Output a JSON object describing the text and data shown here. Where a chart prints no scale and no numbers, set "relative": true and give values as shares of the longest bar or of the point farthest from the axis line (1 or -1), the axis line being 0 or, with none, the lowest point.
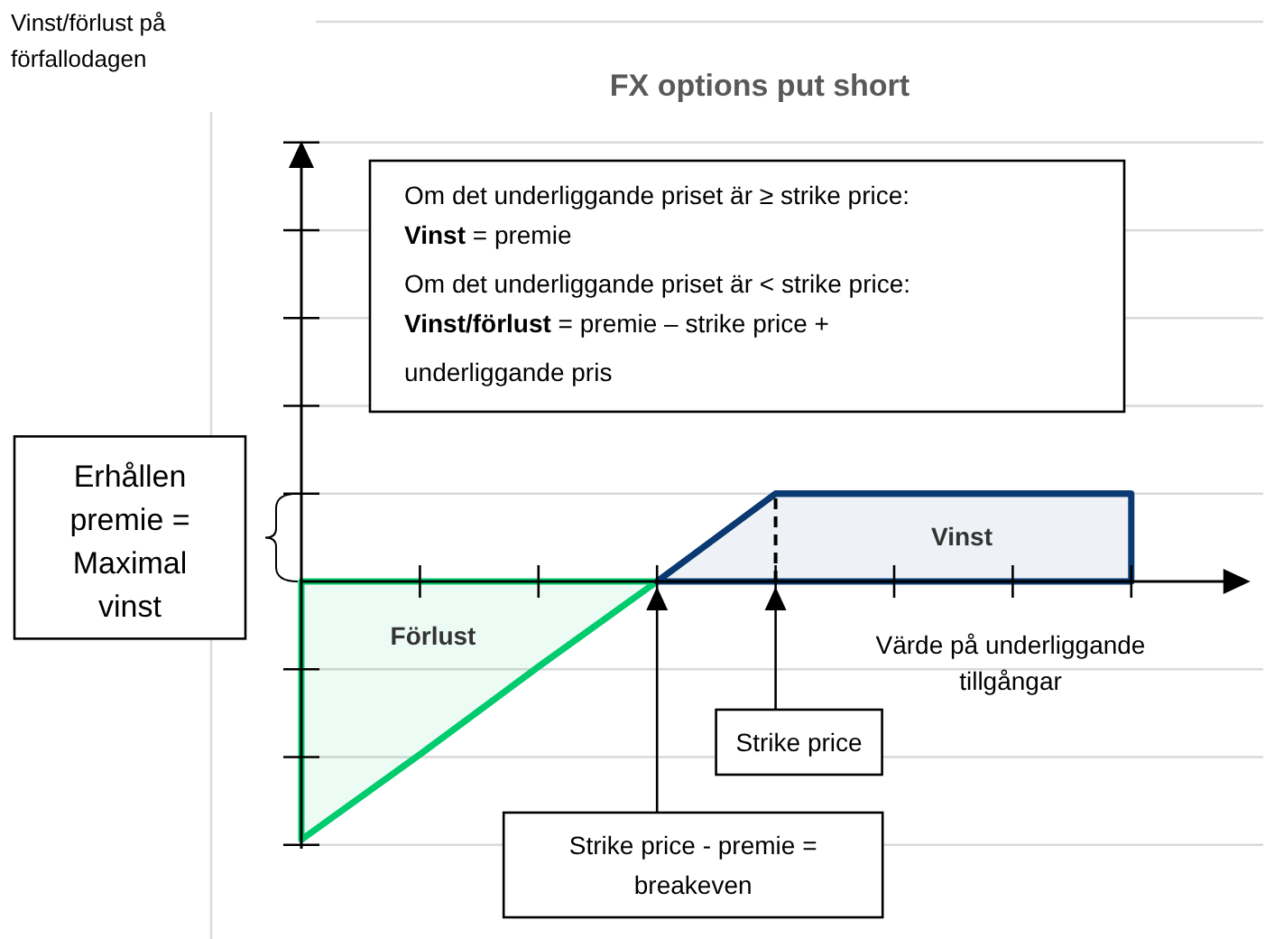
{
  "chart_data": {
    "type": "area",
    "title": "FX options put short",
    "xlabel": "Värde på underliggande tillgångar",
    "relative": true,
    "categories": [
      null,
      null,
      null,
      null,
      null,
      null,
      null,
      null
    ],
    "series": [
      {
        "color": "#00cc6e",
        "values": [
          -1,
          -0.67,
          -0.33,
          0,
          null,
          null,
          null,
          null
        ]
      },
      {
        "color": "#0b3a72",
        "values": [
          null,
          null,
          null,
          0,
          0.34,
          0.34,
          0.34,
          0.34
        ]
      }
    ],
    "ref_lines": [
      {
        "axis": "y",
        "value": 1.7,
        "color": "#d9d9d9"
      },
      {
        "axis": "y",
        "value": 1.36,
        "color": "#d9d9d9"
      },
      {
        "axis": "y",
        "value": 1.02,
        "color": "#d9d9d9"
      },
      {
        "axis": "y",
        "value": 0.68,
        "color": "#d9d9d9"
      },
      {
        "axis": "y",
        "value": 0.34,
        "color": "#d9d9d9"
      },
      {
        "axis": "y",
        "value": -0.34,
        "color": "#d9d9d9"
      },
      {
        "axis": "y",
        "value": -0.68,
        "color": "#d9d9d9"
      },
      {
        "axis": "y",
        "value": -1.02,
        "color": "#d9d9d9"
      }
    ],
    "annotations": [
      "Om det underliggande priset är ≥ strike price:\nVinst = premie\nOm det underliggande priset är < strike price:\nVinst/förlust = premie – strike price +\nunderliggande pris",
      "Vinst",
      "Förlust",
      "Erhållen premie = Maximal vinst",
      "Strike price",
      "Strike price - premie = breakeven",
      "Vinst/förlust på förfallodagen"
    ]
  }
}
